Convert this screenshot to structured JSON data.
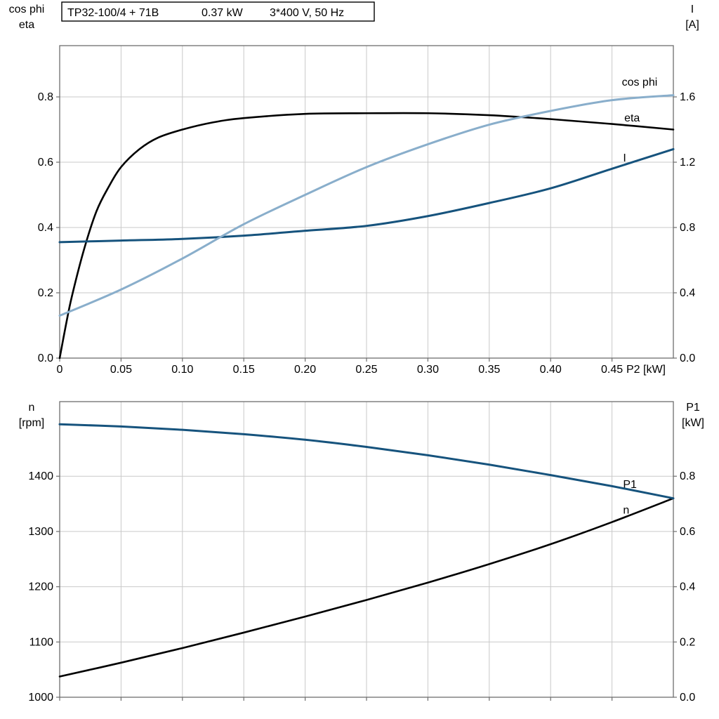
{
  "title_parts": [
    "TP32-100/4 + 71B",
    "0.37 kW",
    "3*400 V, 50 Hz"
  ],
  "colors": {
    "light_blue": "#89aecb",
    "dark_blue": "#16537d",
    "black": "#000000",
    "grid": "#c9c9c9",
    "frame": "#6e6e6e"
  },
  "chart_data": [
    {
      "id": "top",
      "type": "line",
      "title": "TP32-100/4 + 71B   0.37 kW   3*400 V, 50 Hz",
      "grid": true,
      "x_axis": {
        "label": "P2 [kW]",
        "range": [
          0,
          0.5
        ],
        "ticks": [
          0,
          0.05,
          0.1,
          0.15,
          0.2,
          0.25,
          0.3,
          0.35,
          0.4,
          0.45
        ],
        "tick_labels": [
          "0",
          "0.05",
          "0.10",
          "0.15",
          "0.20",
          "0.25",
          "0.30",
          "0.35",
          "0.40",
          "0.45"
        ]
      },
      "left_axis": {
        "label_lines": [
          "cos phi",
          "eta"
        ],
        "range": [
          0,
          0.957
        ],
        "ticks": [
          0,
          0.2,
          0.4,
          0.6,
          0.8
        ],
        "tick_labels": [
          "0.0",
          "0.2",
          "0.4",
          "0.6",
          "0.8"
        ]
      },
      "right_axis": {
        "label_lines": [
          "I",
          "[A]"
        ],
        "range": [
          0,
          1.914
        ],
        "ticks": [
          0,
          0.4,
          0.8,
          1.2,
          1.6
        ],
        "tick_labels": [
          "0.0",
          "0.4",
          "0.8",
          "1.2",
          "1.6"
        ]
      },
      "series": [
        {
          "name": "eta",
          "label": "eta",
          "axis": "left",
          "color": "#000000",
          "x": [
            0,
            0.005,
            0.01,
            0.02,
            0.03,
            0.04,
            0.05,
            0.065,
            0.08,
            0.1,
            0.125,
            0.15,
            0.2,
            0.25,
            0.3,
            0.35,
            0.4,
            0.45,
            0.5
          ],
          "y": [
            0,
            0.1,
            0.19,
            0.335,
            0.45,
            0.525,
            0.585,
            0.64,
            0.675,
            0.7,
            0.722,
            0.735,
            0.748,
            0.75,
            0.75,
            0.744,
            0.732,
            0.717,
            0.7
          ],
          "label_x": 0.46,
          "label_y": 0.725
        },
        {
          "name": "I",
          "label": "I",
          "axis": "right",
          "color": "#16537d",
          "x": [
            0,
            0.05,
            0.1,
            0.15,
            0.2,
            0.25,
            0.3,
            0.35,
            0.4,
            0.45,
            0.5
          ],
          "y": [
            0.71,
            0.72,
            0.73,
            0.75,
            0.78,
            0.81,
            0.87,
            0.95,
            1.04,
            1.16,
            1.28
          ],
          "label_x": 0.459,
          "label_y": 1.204
        },
        {
          "name": "cos phi",
          "label": "cos phi",
          "axis": "left",
          "color": "#89aecb",
          "x": [
            0,
            0.05,
            0.1,
            0.15,
            0.2,
            0.25,
            0.3,
            0.35,
            0.4,
            0.45,
            0.5
          ],
          "y": [
            0.13,
            0.21,
            0.305,
            0.41,
            0.5,
            0.585,
            0.655,
            0.715,
            0.757,
            0.79,
            0.805
          ],
          "label_x": 0.458,
          "label_y": 0.834
        }
      ]
    },
    {
      "id": "bottom",
      "type": "line",
      "title": "",
      "grid": true,
      "x_axis": {
        "label": "",
        "range": [
          0,
          0.5
        ],
        "ticks": [
          0,
          0.05,
          0.1,
          0.15,
          0.2,
          0.25,
          0.3,
          0.35,
          0.4,
          0.45
        ],
        "tick_labels": []
      },
      "left_axis": {
        "label_lines": [
          "n",
          "[rpm]"
        ],
        "range": [
          1000,
          1535
        ],
        "ticks": [
          1000,
          1100,
          1200,
          1300,
          1400
        ],
        "tick_labels": [
          "1000",
          "1100",
          "1200",
          "1300",
          "1400"
        ]
      },
      "right_axis": {
        "label_lines": [
          "P1",
          "[kW]"
        ],
        "range": [
          0,
          1.07
        ],
        "ticks": [
          0,
          0.2,
          0.4,
          0.6,
          0.8
        ],
        "tick_labels": [
          "0.0",
          "0.2",
          "0.4",
          "0.6",
          "0.8"
        ]
      },
      "series": [
        {
          "name": "P1",
          "label": "P1",
          "axis": "right",
          "color": "#000000",
          "x": [
            0,
            0.05,
            0.1,
            0.15,
            0.2,
            0.25,
            0.3,
            0.35,
            0.4,
            0.45,
            0.5
          ],
          "y": [
            0.075,
            0.125,
            0.178,
            0.234,
            0.292,
            0.352,
            0.415,
            0.482,
            0.554,
            0.634,
            0.72
          ],
          "label_x": 0.459,
          "label_y": 0.757
        },
        {
          "name": "n",
          "label": "n",
          "axis": "left",
          "color": "#16537d",
          "x": [
            0,
            0.05,
            0.1,
            0.15,
            0.2,
            0.25,
            0.3,
            0.35,
            0.4,
            0.45,
            0.5
          ],
          "y": [
            1494,
            1490,
            1484,
            1476,
            1466,
            1453,
            1438,
            1421,
            1402,
            1382,
            1360
          ],
          "label_x": 0.459,
          "label_y": 1332
        }
      ]
    }
  ]
}
